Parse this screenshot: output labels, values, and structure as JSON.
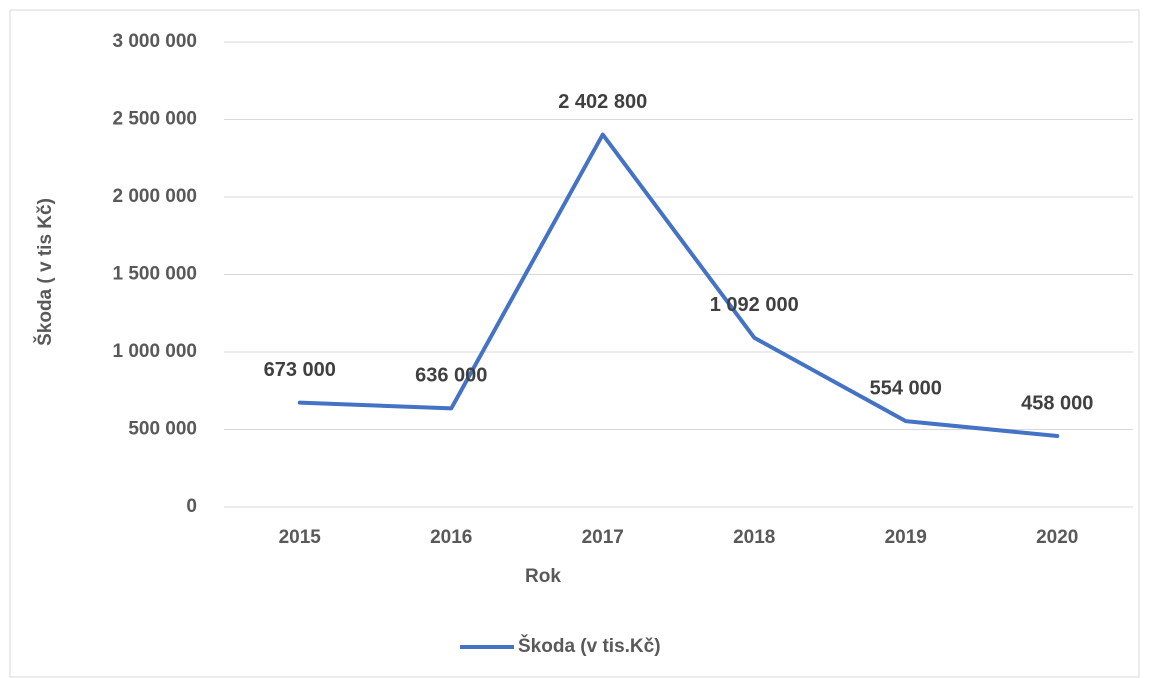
{
  "chart_data": {
    "type": "line",
    "x_label": "Rok",
    "y_label": "Škoda ( v tis Kč)",
    "categories": [
      "2015",
      "2016",
      "2017",
      "2018",
      "2019",
      "2020"
    ],
    "series": [
      {
        "name": "Škoda (v tis.Kč)",
        "color": "#4472c4",
        "values": [
          673000,
          636000,
          2402800,
          1092000,
          554000,
          458000
        ],
        "value_labels": [
          "673 000",
          "636 000",
          "2 402 800",
          "1 092 000",
          "554 000",
          "458 000"
        ]
      }
    ],
    "ylim": [
      0,
      3000000
    ],
    "yticks": [
      0,
      {
        "value": 500000,
        "label": "500 000"
      },
      {
        "value": 1000000,
        "label": "1 000 000"
      },
      {
        "value": 1500000,
        "label": "1 500 000"
      },
      {
        "value": 2000000,
        "label": "2 000 000"
      },
      {
        "value": 2500000,
        "label": "2 500 000"
      },
      {
        "value": 3000000,
        "label": "3 000 000"
      }
    ],
    "grid": true,
    "legend": "bottom"
  }
}
